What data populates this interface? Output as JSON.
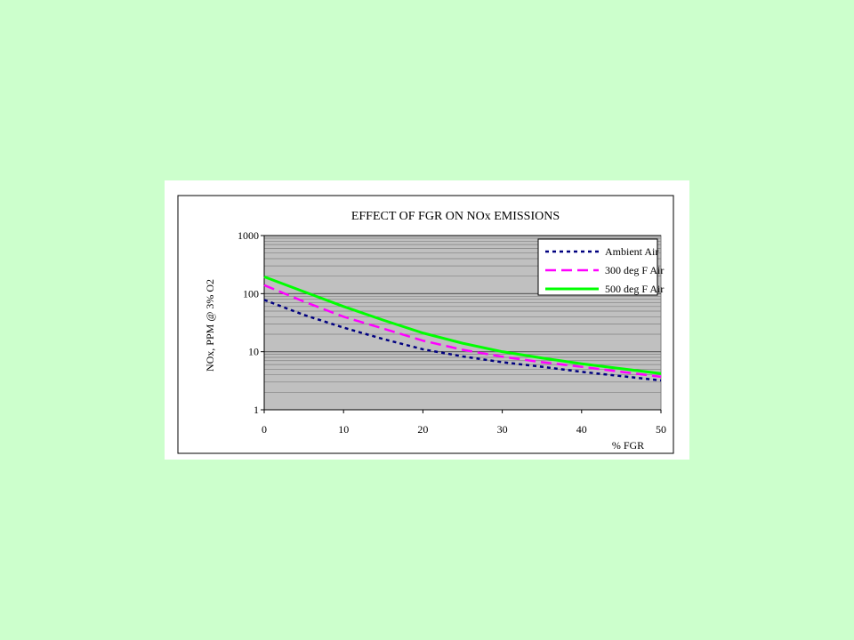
{
  "colors": {
    "page_background": "#ccffcc",
    "plot_background": "#c0c0c0"
  },
  "chart_data": {
    "type": "line",
    "title": "EFFECT OF FGR ON NOx EMISSIONS",
    "xlabel": "% FGR",
    "ylabel": "NOx, PPM @ 3% O2",
    "xlim": [
      0,
      50
    ],
    "ylim": [
      1,
      1000
    ],
    "y_scale": "log",
    "x_ticks": [
      0,
      10,
      20,
      30,
      40,
      50
    ],
    "y_ticks": [
      1,
      10,
      100,
      1000
    ],
    "grid": true,
    "legend_position": "top-right",
    "x": [
      0,
      5,
      10,
      15,
      20,
      25,
      30,
      35,
      40,
      45,
      50
    ],
    "series": [
      {
        "name": "Ambient Air",
        "color": "#000080",
        "dash": "dotted",
        "values": [
          78,
          43,
          26,
          16.5,
          11,
          8.3,
          6.6,
          5.5,
          4.5,
          3.8,
          3.2
        ]
      },
      {
        "name": "300 deg F Air",
        "color": "#ff00ff",
        "dash": "dashed",
        "values": [
          140,
          73,
          40,
          25,
          15.5,
          10.8,
          8.2,
          6.6,
          5.5,
          4.5,
          3.7
        ]
      },
      {
        "name": "500 deg F Air",
        "color": "#00ff00",
        "dash": "solid",
        "values": [
          195,
          108,
          60,
          35,
          21,
          14,
          10,
          7.8,
          6.2,
          5.1,
          4.2
        ]
      }
    ]
  }
}
